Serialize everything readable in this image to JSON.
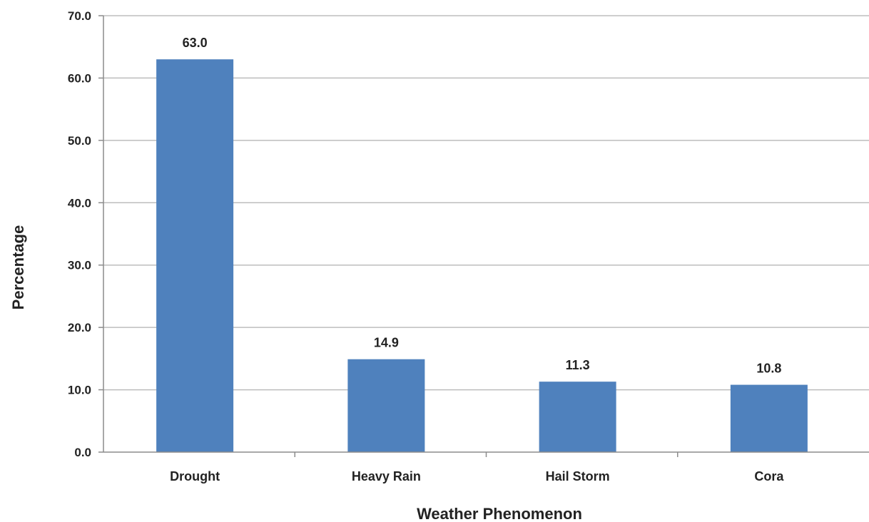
{
  "chart_data": {
    "type": "bar",
    "title": "",
    "xlabel": "Weather Phenomenon",
    "ylabel": "Percentage",
    "categories": [
      "Drought",
      "Heavy Rain",
      "Hail Storm",
      "Cora"
    ],
    "values": [
      63.0,
      14.9,
      11.3,
      10.8
    ],
    "data_labels": [
      "63.0",
      "14.9",
      "11.3",
      "10.8"
    ],
    "ylim": [
      0,
      70
    ],
    "yticks": [
      0,
      10,
      20,
      30,
      40,
      50,
      60,
      70
    ],
    "ytick_labels": [
      "0.0",
      "10.0",
      "20.0",
      "30.0",
      "40.0",
      "50.0",
      "60.0",
      "70.0"
    ],
    "grid": true,
    "legend": "none",
    "colors": {
      "bar": "#4f81bd",
      "grid": "#bdbdbd",
      "axis": "#8c8c8c"
    }
  }
}
